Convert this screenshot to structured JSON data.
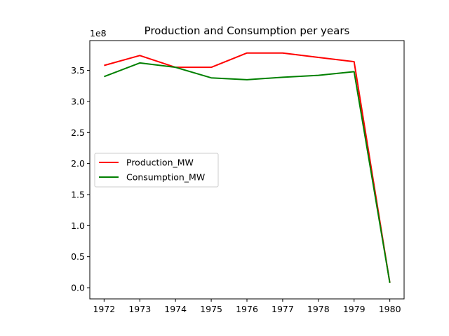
{
  "chart_data": {
    "type": "line",
    "title": "Production and Consumption per years",
    "xlabel": "",
    "ylabel": "",
    "y_offset_label": "1e8",
    "x": [
      1972,
      1973,
      1974,
      1975,
      1976,
      1977,
      1978,
      1979,
      1980
    ],
    "xticks": [
      "1972",
      "1973",
      "1974",
      "1975",
      "1976",
      "1977",
      "1978",
      "1979",
      "1980"
    ],
    "yticks": [
      "0.0",
      "0.5",
      "1.0",
      "1.5",
      "2.0",
      "2.5",
      "3.0",
      "3.5"
    ],
    "ytick_values": [
      0.0,
      0.5,
      1.0,
      1.5,
      2.0,
      2.5,
      3.0,
      3.5
    ],
    "xlim": [
      1971.6,
      1980.4
    ],
    "ylim": [
      -0.18,
      3.98
    ],
    "y_scale": 100000000,
    "grid": false,
    "legend_position": "center-left",
    "series": [
      {
        "name": "Production_MW",
        "color": "#ff0000",
        "values": [
          3.58,
          3.74,
          3.55,
          3.55,
          3.78,
          3.78,
          3.71,
          3.64,
          0.08
        ]
      },
      {
        "name": "Consumption_MW",
        "color": "#008000",
        "values": [
          3.4,
          3.62,
          3.55,
          3.38,
          3.35,
          3.39,
          3.42,
          3.48,
          0.08
        ]
      }
    ]
  }
}
